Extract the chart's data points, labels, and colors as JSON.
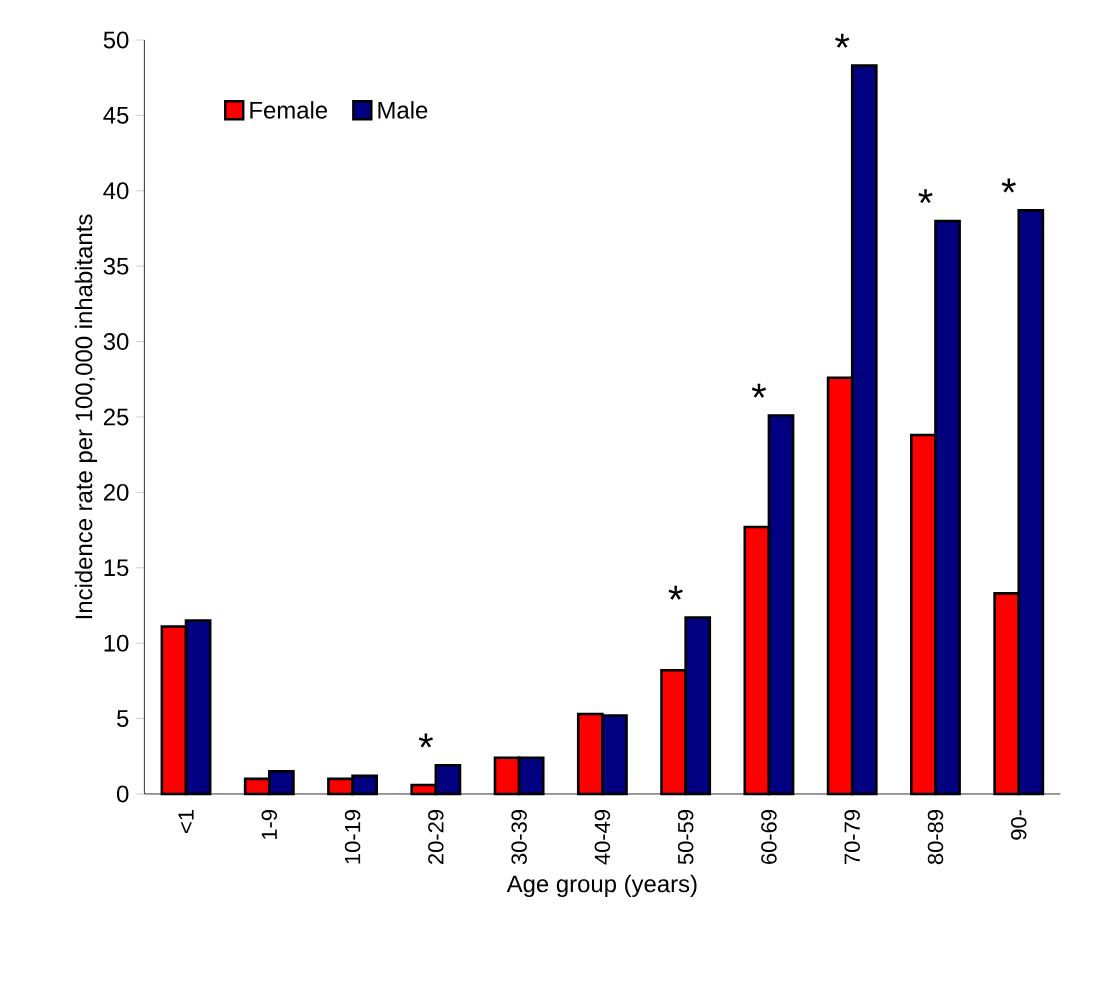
{
  "chart_data": {
    "type": "bar",
    "xlabel": "Age group (years)",
    "ylabel": "Incidence rate per 100,000 inhabitants",
    "categories": [
      "<1",
      "1-9",
      "10-19",
      "20-29",
      "30-39",
      "40-49",
      "50-59",
      "60-69",
      "70-79",
      "80-89",
      "90-"
    ],
    "series": [
      {
        "name": "Female",
        "color": "#ff0000",
        "values": [
          11.1,
          1.0,
          1.0,
          0.6,
          2.4,
          5.3,
          8.2,
          17.7,
          27.6,
          23.8,
          13.3
        ]
      },
      {
        "name": "Male",
        "color": "#000080",
        "values": [
          11.5,
          1.5,
          1.2,
          1.9,
          2.4,
          5.2,
          11.7,
          25.1,
          48.3,
          38.0,
          38.7
        ]
      }
    ],
    "ylim": [
      0,
      50
    ],
    "yticks": [
      0,
      5,
      10,
      15,
      20,
      25,
      30,
      35,
      40,
      45,
      50
    ],
    "legend": "top left",
    "grid": false,
    "annotations": [
      {
        "text": "*",
        "x": "20-29",
        "y": 1.9
      },
      {
        "text": "*",
        "x": "50-59",
        "y": 11.7
      },
      {
        "text": "*",
        "x": "60-69",
        "y": 25.1
      },
      {
        "text": "*",
        "x": "70-79",
        "y": 48.3
      },
      {
        "text": "*",
        "x": "80-89",
        "y": 38.0
      },
      {
        "text": "*",
        "x": "90-",
        "y": 38.7
      }
    ]
  }
}
